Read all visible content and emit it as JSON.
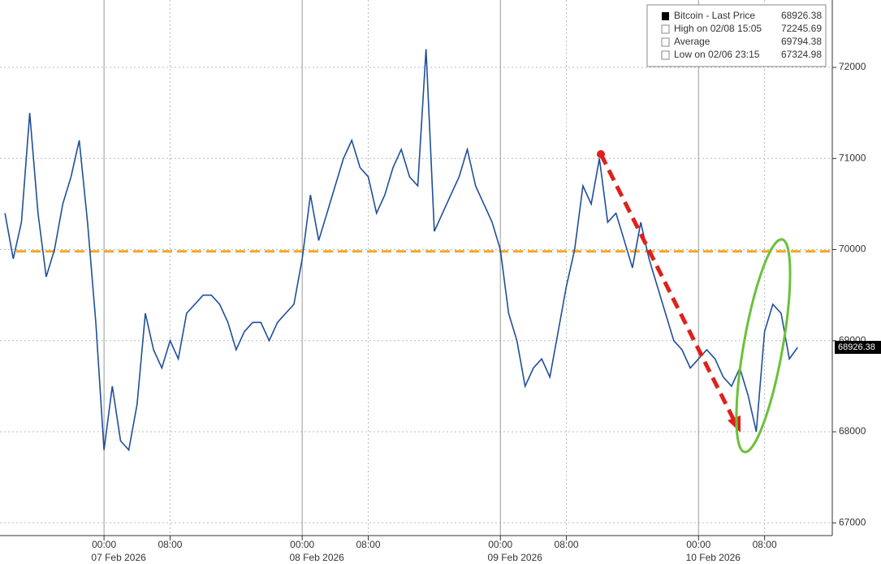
{
  "chart_data": {
    "type": "line",
    "series": [
      {
        "name": "Bitcoin - Last Price",
        "color": "#1f4f99",
        "x": [
          -12,
          -11,
          -10,
          -9,
          -8,
          -7,
          -6,
          -5,
          -4,
          -3,
          -2,
          -1,
          0,
          1,
          2,
          3,
          4,
          5,
          6,
          7,
          8,
          9,
          10,
          11,
          12,
          13,
          14,
          15,
          16,
          17,
          18,
          19,
          20,
          21,
          22,
          23,
          24,
          25,
          26,
          27,
          28,
          29,
          30,
          31,
          32,
          33,
          34,
          35,
          36,
          37,
          38,
          39,
          40,
          41,
          42,
          43,
          44,
          45,
          46,
          47,
          48,
          49,
          50,
          51,
          52,
          53,
          54,
          55,
          56,
          57,
          58,
          59,
          60,
          61,
          62,
          63,
          64,
          65,
          66,
          67,
          68,
          69,
          70,
          71,
          72,
          73,
          74,
          75,
          76,
          77,
          78,
          79,
          80,
          81,
          82,
          83,
          84
        ],
        "values": [
          70400,
          69900,
          70300,
          71500,
          70400,
          69700,
          70000,
          70500,
          70800,
          71200,
          70300,
          69200,
          67800,
          68500,
          67900,
          67800,
          68300,
          69300,
          68900,
          68700,
          69000,
          68800,
          69300,
          69400,
          69500,
          69500,
          69400,
          69200,
          68900,
          69100,
          69200,
          69200,
          69000,
          69200,
          69300,
          69400,
          69900,
          70600,
          70100,
          70400,
          70700,
          71000,
          71200,
          70900,
          70800,
          70400,
          70600,
          70900,
          71100,
          70800,
          70700,
          72200,
          70200,
          70400,
          70600,
          70800,
          71100,
          70700,
          70500,
          70300,
          70000,
          69300,
          69000,
          68500,
          68700,
          68800,
          68600,
          69100,
          69600,
          70000,
          70700,
          70500,
          71000,
          70300,
          70400,
          70100,
          69800,
          70300,
          69900,
          69600,
          69300,
          69000,
          68900,
          68700,
          68800,
          68900,
          68800,
          68600,
          68500,
          68700,
          68400,
          68000,
          69100,
          69400,
          69300,
          68800,
          68926
        ]
      }
    ],
    "xlim": [
      -12.6,
      88.2
    ],
    "xticks": [
      {
        "value": 0,
        "label": "00:00"
      },
      {
        "value": 8,
        "label": "08:00"
      },
      {
        "value": 24,
        "label": "00:00"
      },
      {
        "value": 32,
        "label": "08:00"
      },
      {
        "value": 48,
        "label": "00:00"
      },
      {
        "value": 56,
        "label": "08:00"
      },
      {
        "value": 72,
        "label": "00:00"
      },
      {
        "value": 80,
        "label": "08:00"
      }
    ],
    "dates": [
      "07 Feb 2026",
      "08 Feb 2026",
      "09 Feb 2026",
      "10 Feb 2026"
    ],
    "ylim": [
      66860,
      72740
    ],
    "yticks": [
      67000,
      68000,
      69000,
      70000,
      71000,
      72000
    ],
    "grid": true,
    "reference_line": {
      "value": 69980,
      "color": "#f5a623"
    },
    "last_price": 68926.38,
    "legend": [
      {
        "label": "Bitcoin - Last Price",
        "value": 68926.38
      },
      {
        "label": "High on 02/08 15:05",
        "value": 72245.69
      },
      {
        "label": "Average",
        "value": 69794.38
      },
      {
        "label": "Low on 02/06 23:15",
        "value": 67324.98
      }
    ]
  }
}
